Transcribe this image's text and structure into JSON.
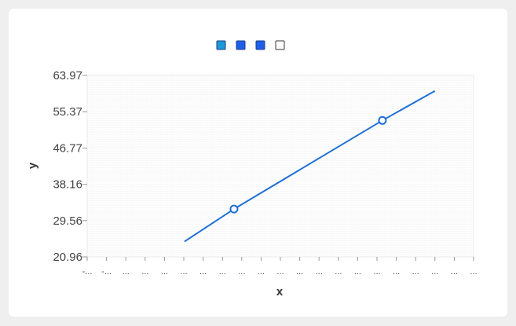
{
  "chart_data": {
    "type": "line",
    "title": "",
    "xlabel": "x",
    "ylabel": "y",
    "ylim": [
      20.96,
      63.97
    ],
    "yticks": [
      "20.96",
      "29.56",
      "38.16",
      "46.77",
      "55.37",
      "63.97"
    ],
    "xtick_labels": [
      "-...",
      "-...",
      "...",
      "...",
      "...",
      "...",
      "...",
      "...",
      "...",
      "...",
      "...",
      "...",
      "...",
      "...",
      "...",
      "...",
      "...",
      "...",
      "...",
      "...",
      "..."
    ],
    "grid": true,
    "legend": {
      "placement": "top-center",
      "swatches": [
        {
          "color": "#1a9ad6",
          "filled": true
        },
        {
          "color": "#1f5ee8",
          "filled": true
        },
        {
          "color": "#1f5ee8",
          "filled": true
        },
        {
          "color": "#ffffff",
          "filled": false
        }
      ]
    },
    "series": [
      {
        "color": "#1f6fd8",
        "x": [
          0.19,
          0.35,
          0.83,
          1.0
        ],
        "y": [
          24.6,
          32.3,
          53.3,
          60.3
        ],
        "marker_indices": [
          1,
          2
        ]
      }
    ]
  }
}
